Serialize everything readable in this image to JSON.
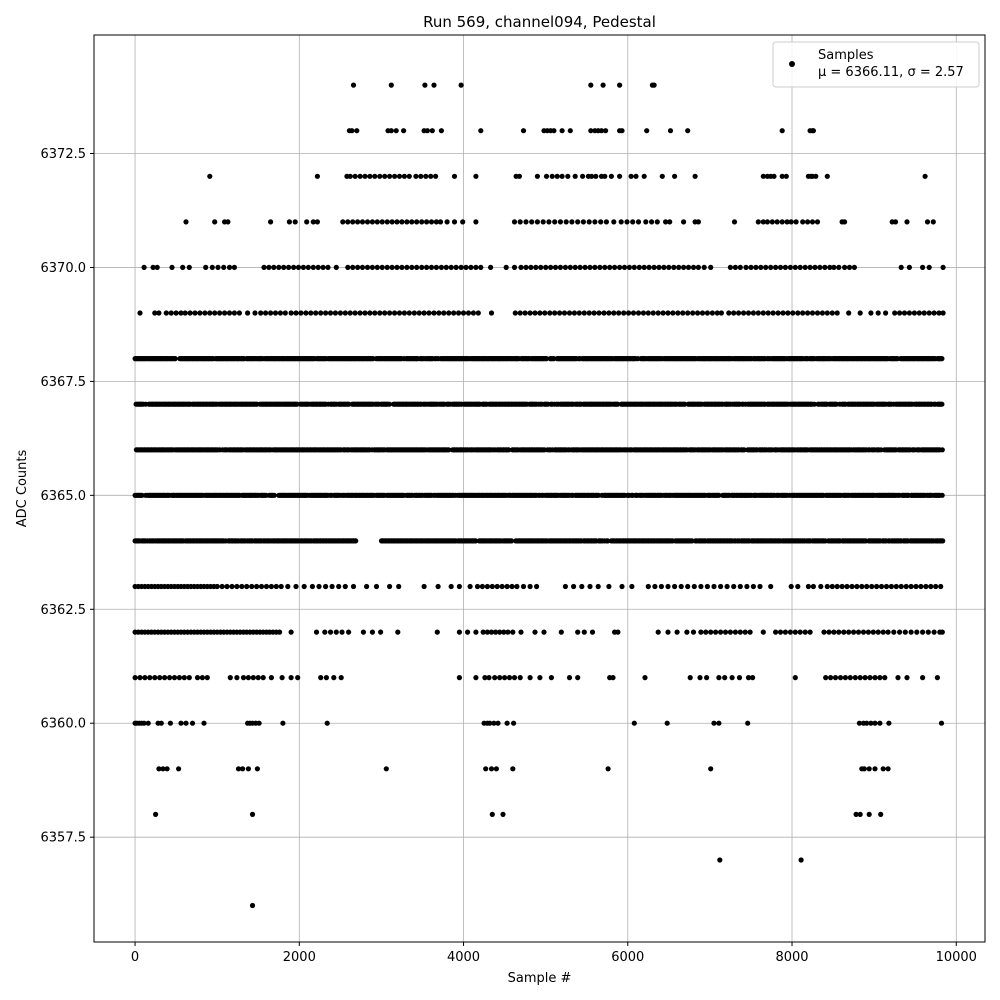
{
  "chart_data": {
    "type": "scatter",
    "title": "Run 569, channel094, Pedestal",
    "xlabel": "Sample #",
    "ylabel": "ADC Counts",
    "xlim": [
      -500,
      10350
    ],
    "ylim": [
      6355.2,
      6375.1
    ],
    "xticks": [
      0,
      2000,
      4000,
      6000,
      8000,
      10000
    ],
    "yticks": [
      6357.5,
      6360.0,
      6362.5,
      6365.0,
      6367.5,
      6370.0,
      6372.5
    ],
    "xtick_labels": [
      "0",
      "2000",
      "4000",
      "6000",
      "8000",
      "10000"
    ],
    "ytick_labels": [
      "6357.5",
      "6360.0",
      "6362.5",
      "6365.0",
      "6367.5",
      "6370.0",
      "6372.5"
    ],
    "grid": true,
    "marker_color": "#000000",
    "legend": {
      "placement": "top-right",
      "label": "Samples",
      "stats_text": "μ = 6366.11, σ = 2.57"
    },
    "series": [
      {
        "name": "Samples",
        "mean": 6366.11,
        "sigma": 2.57,
        "n_samples": 9830,
        "levels": [
          {
            "y": 6356,
            "x": [
              1430
            ]
          },
          {
            "y": 6357,
            "x": [
              7120,
              8110
            ]
          },
          {
            "y": 6358,
            "x": [
              250,
              1430,
              4350,
              4480,
              8780,
              8830,
              8940,
              9080
            ]
          },
          {
            "y": 6359,
            "x": [
              290,
              340,
              390,
              530,
              1260,
              1310,
              1380,
              1490,
              3060,
              4270,
              4340,
              4400,
              4600,
              5760,
              7010,
              8850,
              8880,
              8940,
              9010,
              9110,
              9170
            ]
          },
          {
            "y": 6360,
            "x": [
              0,
              20,
              50,
              80,
              110,
              160,
              280,
              320,
              430,
              560,
              620,
              700,
              840,
              1370,
              1400,
              1430,
              1470,
              1510,
              1800,
              2340,
              4250,
              4290,
              4320,
              4370,
              4420,
              4530,
              4610,
              6080,
              6480,
              7050,
              7110,
              7460,
              8820,
              8870,
              8910,
              8960,
              9010,
              9070,
              9180,
              9820
            ]
          },
          {
            "y": 6361,
            "x": [
              0,
              60,
              120,
              180,
              240,
              300,
              360,
              420,
              480,
              540,
              600,
              660,
              760,
              820,
              880,
              1160,
              1240,
              1320,
              1380,
              1440,
              1500,
              1560,
              1660,
              1790,
              1900,
              1980,
              2260,
              2330,
              2420,
              2510,
              3950,
              4150,
              4260,
              4310,
              4380,
              4440,
              4500,
              4560,
              4620,
              4690,
              4810,
              4930,
              5070,
              5290,
              5390,
              5780,
              5820,
              6210,
              6760,
              6880,
              6960,
              7110,
              7180,
              7270,
              7360,
              7470,
              7520,
              8040,
              8410,
              8470,
              8530,
              8590,
              8650,
              8710,
              8770,
              8830,
              8890,
              8950,
              9010,
              9070,
              9130,
              9290,
              9400,
              9590,
              9770
            ]
          },
          {
            "y": 6362,
            "x": [
              0,
              40,
              80,
              120,
              160,
              200,
              240,
              280,
              320,
              360,
              400,
              440,
              480,
              520,
              560,
              600,
              640,
              680,
              720,
              760,
              800,
              840,
              880,
              920,
              960,
              1000,
              1040,
              1080,
              1120,
              1160,
              1200,
              1240,
              1280,
              1320,
              1360,
              1400,
              1440,
              1480,
              1520,
              1560,
              1600,
              1640,
              1680,
              1720,
              1760,
              1900,
              2210,
              2310,
              2380,
              2450,
              2520,
              2600,
              2780,
              2890,
              2990,
              3200,
              3680,
              3950,
              4050,
              4150,
              4240,
              4290,
              4340,
              4390,
              4440,
              4490,
              4540,
              4600,
              4700,
              4870,
              4980,
              5190,
              5390,
              5470,
              5570,
              5840,
              5880,
              6370,
              6490,
              6600,
              6720,
              6800,
              6890,
              6950,
              7010,
              7070,
              7130,
              7190,
              7250,
              7310,
              7370,
              7430,
              7490,
              7650,
              7800,
              7860,
              7920,
              7980,
              8040,
              8100,
              8160,
              8220,
              8390,
              8450,
              8510,
              8570,
              8630,
              8690,
              8750,
              8810,
              8870,
              8930,
              8990,
              9050,
              9110,
              9170,
              9240,
              9310,
              9380,
              9450,
              9520,
              9590,
              9660,
              9730,
              9800,
              9830
            ]
          },
          {
            "y": 6363,
            "x": [
              0,
              40,
              80,
              120,
              160,
              200,
              240,
              280,
              320,
              360,
              400,
              440,
              480,
              520,
              560,
              600,
              640,
              680,
              720,
              760,
              800,
              840,
              880,
              920,
              960,
              1000,
              1060,
              1120,
              1180,
              1240,
              1300,
              1360,
              1420,
              1480,
              1540,
              1600,
              1660,
              1720,
              1780,
              1860,
              1960,
              2060,
              2160,
              2240,
              2320,
              2400,
              2480,
              2560,
              2660,
              2820,
              2940,
              3100,
              3210,
              3520,
              3690,
              3850,
              3950,
              4080,
              4170,
              4230,
              4290,
              4350,
              4410,
              4470,
              4530,
              4590,
              4650,
              4730,
              4810,
              4890,
              5240,
              5340,
              5440,
              5540,
              5640,
              5770,
              5930,
              6050,
              6250,
              6330,
              6410,
              6490,
              6570,
              6650,
              6730,
              6810,
              6890,
              6970,
              7050,
              7130,
              7210,
              7290,
              7370,
              7450,
              7530,
              7610,
              7740,
              7990,
              8070,
              8200,
              8260,
              8350,
              8430,
              8490,
              8550,
              8610,
              8670,
              8730,
              8790,
              8850,
              8910,
              8970,
              9030,
              9090,
              9150,
              9210,
              9270,
              9330,
              9390,
              9450,
              9510,
              9570,
              9630,
              9690,
              9750,
              9810
            ]
          },
          {
            "y": 6364,
            "x": "dense:0-2700,3000-5760,5800-9840"
          },
          {
            "y": 6365,
            "x": "dense:0-9840"
          },
          {
            "y": 6366,
            "x": "dense:0-9840"
          },
          {
            "y": 6367,
            "x": "dense:0-9840"
          },
          {
            "y": 6368,
            "x": "dense:0-9840"
          },
          {
            "y": 6369,
            "x": [
              60,
              240,
              290,
              380,
              440,
              500,
              560,
              610,
              670,
              730,
              790,
              850,
              910,
              970,
              1030,
              1090,
              1150,
              1210,
              1270,
              1370,
              1460,
              1530,
              1590,
              1650,
              1710,
              1770,
              1830,
              1900,
              1960,
              2020,
              2080,
              2140,
              2200,
              2260,
              2320,
              2380,
              2440,
              2500,
              2560,
              2620,
              2680,
              2740,
              2800,
              2860,
              2920,
              2980,
              3040,
              3100,
              3160,
              3220,
              3280,
              3340,
              3400,
              3460,
              3520,
              3580,
              3640,
              3700,
              3760,
              3820,
              3880,
              3940,
              4000,
              4060,
              4120,
              4180,
              4340,
              4630,
              4690,
              4750,
              4810,
              4870,
              4930,
              4990,
              5050,
              5110,
              5170,
              5230,
              5290,
              5350,
              5410,
              5470,
              5530,
              5590,
              5650,
              5710,
              5770,
              5830,
              5890,
              5950,
              6010,
              6070,
              6130,
              6190,
              6250,
              6310,
              6370,
              6430,
              6490,
              6550,
              6610,
              6670,
              6730,
              6790,
              6850,
              6910,
              6970,
              7030,
              7090,
              7140,
              7230,
              7290,
              7350,
              7410,
              7470,
              7530,
              7590,
              7650,
              7710,
              7770,
              7830,
              7890,
              7950,
              8010,
              8070,
              8130,
              8190,
              8250,
              8310,
              8370,
              8430,
              8490,
              8550,
              8690,
              8830,
              8960,
              9050,
              9140,
              9250,
              9310,
              9370,
              9430,
              9490,
              9550,
              9610,
              9670,
              9730,
              9790,
              9840
            ]
          },
          {
            "y": 6370,
            "x": [
              110,
              220,
              270,
              450,
              580,
              660,
              860,
              940,
              1010,
              1080,
              1150,
              1210,
              1570,
              1630,
              1690,
              1750,
              1810,
              1870,
              1930,
              1990,
              2050,
              2110,
              2170,
              2230,
              2290,
              2350,
              2450,
              2590,
              2650,
              2710,
              2770,
              2830,
              2890,
              2950,
              3010,
              3070,
              3130,
              3190,
              3250,
              3310,
              3370,
              3430,
              3490,
              3550,
              3610,
              3670,
              3730,
              3790,
              3850,
              3910,
              3970,
              4030,
              4090,
              4150,
              4210,
              4330,
              4520,
              4620,
              4700,
              4760,
              4820,
              4880,
              4940,
              5000,
              5060,
              5120,
              5180,
              5240,
              5300,
              5360,
              5420,
              5480,
              5540,
              5600,
              5660,
              5720,
              5780,
              5840,
              5900,
              5960,
              6020,
              6080,
              6140,
              6200,
              6260,
              6320,
              6380,
              6440,
              6500,
              6560,
              6620,
              6680,
              6740,
              6800,
              6860,
              6930,
              7010,
              7250,
              7310,
              7370,
              7440,
              7500,
              7560,
              7620,
              7680,
              7740,
              7800,
              7860,
              7920,
              7980,
              8040,
              8100,
              8160,
              8220,
              8280,
              8340,
              8400,
              8460,
              8510,
              8570,
              8640,
              8700,
              8760,
              9330,
              9430,
              9590,
              9670,
              9840
            ]
          },
          {
            "y": 6371,
            "x": [
              620,
              970,
              1090,
              1130,
              1650,
              1880,
              1950,
              2090,
              2170,
              2220,
              2530,
              2590,
              2650,
              2710,
              2770,
              2830,
              2890,
              2950,
              3010,
              3070,
              3130,
              3190,
              3250,
              3310,
              3370,
              3430,
              3490,
              3550,
              3610,
              3670,
              3720,
              3800,
              3890,
              3990,
              4150,
              4620,
              4690,
              4760,
              4830,
              4900,
              4970,
              5040,
              5110,
              5180,
              5250,
              5320,
              5390,
              5460,
              5530,
              5600,
              5670,
              5740,
              5830,
              5920,
              5990,
              6060,
              6130,
              6220,
              6290,
              6360,
              6460,
              6510,
              6680,
              6820,
              6860,
              7300,
              7590,
              7650,
              7700,
              7760,
              7820,
              7880,
              7940,
              7990,
              8050,
              8130,
              8190,
              8250,
              8310,
              8610,
              8640,
              9220,
              9260,
              9400,
              9650,
              9720
            ]
          },
          {
            "y": 6372,
            "x": [
              910,
              2220,
              2580,
              2620,
              2680,
              2740,
              2800,
              2860,
              2920,
              2980,
              3040,
              3100,
              3160,
              3220,
              3280,
              3340,
              3420,
              3480,
              3540,
              3600,
              3660,
              3890,
              4150,
              4640,
              4680,
              4900,
              5010,
              5080,
              5140,
              5200,
              5270,
              5360,
              5450,
              5520,
              5560,
              5610,
              5680,
              5720,
              5800,
              5900,
              6040,
              6100,
              6200,
              6420,
              6570,
              6820,
              7650,
              7700,
              7740,
              7780,
              7880,
              7930,
              8200,
              8230,
              8250,
              8290,
              8430,
              9620
            ]
          },
          {
            "y": 6373,
            "x": [
              2610,
              2640,
              2700,
              3080,
              3120,
              3180,
              3270,
              3520,
              3560,
              3620,
              3730,
              4210,
              4730,
              4980,
              5020,
              5060,
              5100,
              5200,
              5300,
              5550,
              5600,
              5640,
              5680,
              5730,
              5900,
              5930,
              6230,
              6520,
              6730,
              7880,
              8220,
              8250,
              8260
            ]
          },
          {
            "y": 6374,
            "x": [
              2660,
              3120,
              3530,
              3640,
              3970,
              5550,
              5700,
              5900,
              6300,
              6320
            ]
          }
        ]
      }
    ]
  }
}
